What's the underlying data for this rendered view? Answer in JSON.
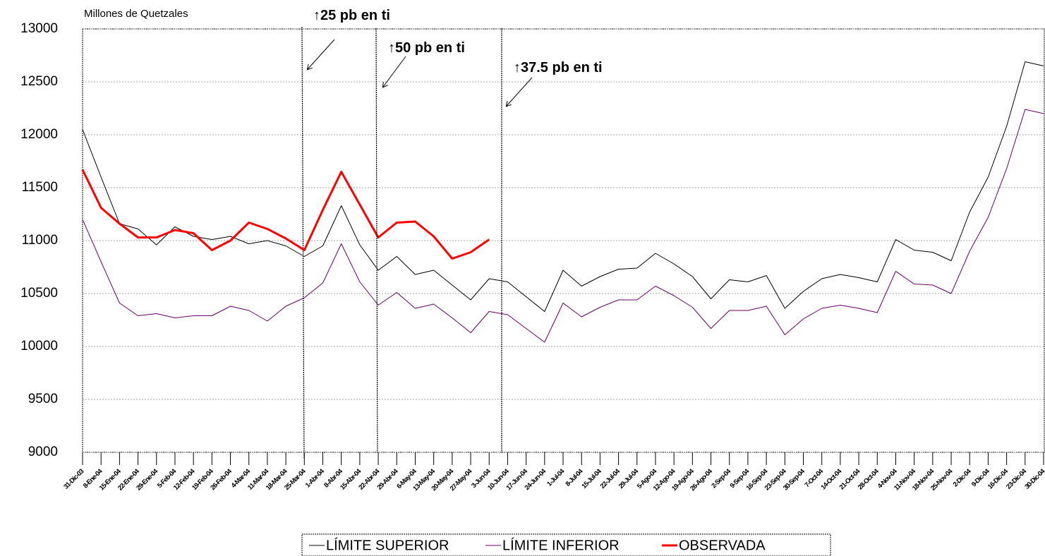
{
  "chart_data": {
    "type": "line",
    "ylabel": "Millones de Quetzales",
    "categories": [
      "31-Dic-03",
      "8-Ene-04",
      "15-Ene-04",
      "22-Ene-04",
      "29-Ene-04",
      "5-Feb-04",
      "12-Feb-04",
      "19-Feb-04",
      "26-Feb-04",
      "4-Mar-04",
      "11-Mar-04",
      "18-Mar-04",
      "25-Mar-04",
      "1-Abr-04",
      "8-Abr-04",
      "15-Abr-04",
      "22-Abr-04",
      "29-Abr-04",
      "6-May-04",
      "13-May-04",
      "20-May-04",
      "27-May-04",
      "3-Jun-04",
      "10-Jun-04",
      "17-Jun-04",
      "24-Jun-04",
      "1-Jul-04",
      "8-Jul-04",
      "15-Jul-04",
      "22-Jul-04",
      "29-Jul-04",
      "5-Ago-04",
      "12-Ago-04",
      "19-Ago-04",
      "26-Ago-04",
      "2-Sep-04",
      "9-Sep-04",
      "16-Sep-04",
      "23-Sep-04",
      "30-Sep-04",
      "7-Oct-04",
      "14-Oct-04",
      "21-Oct-04",
      "28-Oct-04",
      "4-Nov-04",
      "11-Nov-04",
      "18-Nov-04",
      "25-Nov-04",
      "2-Dic-04",
      "9-Dic-04",
      "16-Dic-04",
      "23-Dic-04",
      "30-Dic-04"
    ],
    "series": [
      {
        "name": "LÍMITE SUPERIOR",
        "color": "#000000",
        "width": 1,
        "values": [
          12050,
          11600,
          11160,
          11110,
          10960,
          11130,
          11040,
          11010,
          11040,
          10970,
          11000,
          10950,
          10850,
          10950,
          11330,
          10960,
          10720,
          10850,
          10680,
          10720,
          10580,
          10440,
          10640,
          10610,
          10470,
          10330,
          10720,
          10570,
          10660,
          10730,
          10740,
          10880,
          10780,
          10660,
          10450,
          10630,
          10610,
          10670,
          10360,
          10520,
          10640,
          10680,
          10650,
          10610,
          11010,
          10910,
          10890,
          10810,
          11270,
          11600,
          12080,
          12690,
          12650
        ]
      },
      {
        "name": "LÍMITE INFERIOR",
        "color": "#660066",
        "width": 1,
        "values": [
          11200,
          10800,
          10410,
          10290,
          10310,
          10270,
          10290,
          10290,
          10380,
          10340,
          10240,
          10380,
          10460,
          10600,
          10970,
          10610,
          10390,
          10510,
          10360,
          10400,
          10270,
          10130,
          10330,
          10300,
          10170,
          10040,
          10410,
          10280,
          10370,
          10440,
          10440,
          10570,
          10480,
          10370,
          10170,
          10340,
          10340,
          10380,
          10110,
          10260,
          10360,
          10390,
          10360,
          10320,
          10710,
          10590,
          10580,
          10500,
          10900,
          11220,
          11680,
          12240,
          12200
        ]
      },
      {
        "name": "OBSERVADA",
        "color": "#ff0000",
        "width": 3,
        "values": [
          11670,
          11310,
          11160,
          11030,
          11030,
          11100,
          11070,
          10910,
          11000,
          11170,
          11110,
          11020,
          10910,
          11290,
          11650,
          11340,
          11030,
          11170,
          11180,
          11040,
          10830,
          10890,
          11010,
          null,
          null,
          null,
          null,
          null,
          null,
          null,
          null,
          null,
          null,
          null,
          null,
          null,
          null,
          null,
          null,
          null,
          null,
          null,
          null,
          null,
          null,
          null,
          null,
          null,
          null,
          null,
          null,
          null,
          null
        ]
      }
    ],
    "ylim": [
      9000,
      13000
    ],
    "yticks": [
      9000,
      9500,
      10000,
      10500,
      11000,
      11500,
      12000,
      12500,
      13000
    ],
    "grid": true,
    "annotations": [
      "↑25 pb en ti",
      "↑50 pb en ti",
      "↑37.5 pb en ti"
    ]
  }
}
